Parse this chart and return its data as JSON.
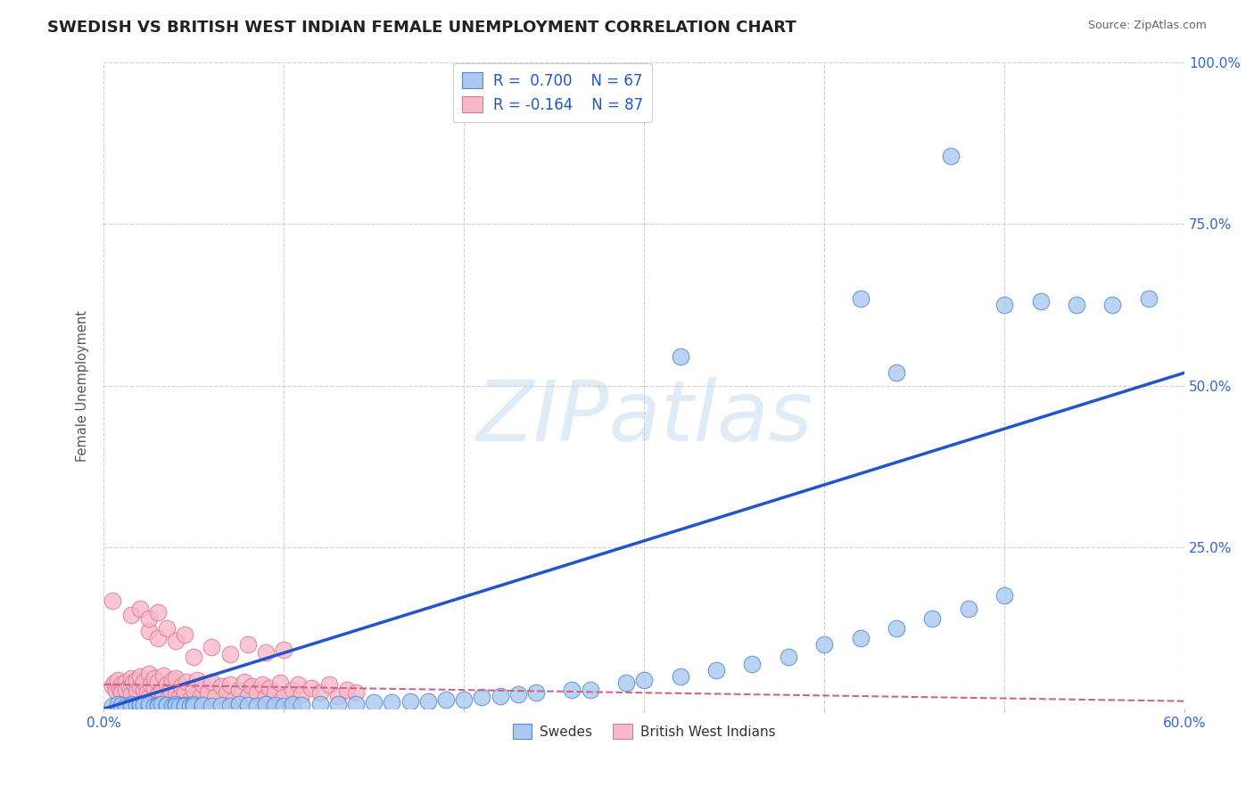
{
  "title": "SWEDISH VS BRITISH WEST INDIAN FEMALE UNEMPLOYMENT CORRELATION CHART",
  "source_text": "Source: ZipAtlas.com",
  "ylabel": "Female Unemployment",
  "xlim": [
    0.0,
    0.6
  ],
  "ylim": [
    0.0,
    1.0
  ],
  "background_color": "#ffffff",
  "grid_color": "#d0d0d0",
  "swedes_color": "#aac8f0",
  "swedes_edge_color": "#5588cc",
  "bwi_color": "#f8b8c8",
  "bwi_edge_color": "#dd7799",
  "trend_blue_color": "#2255cc",
  "trend_pink_color": "#cc6688",
  "tick_color": "#3366cc",
  "title_color": "#222222",
  "title_fontsize": 13,
  "axis_label_color": "#555555",
  "source_color": "#666666",
  "swedes_x": [
    0.005,
    0.008,
    0.01,
    0.012,
    0.015,
    0.015,
    0.018,
    0.02,
    0.02,
    0.022,
    0.025,
    0.025,
    0.028,
    0.03,
    0.03,
    0.032,
    0.035,
    0.035,
    0.038,
    0.04,
    0.04,
    0.042,
    0.045,
    0.045,
    0.048,
    0.05,
    0.05,
    0.055,
    0.055,
    0.06,
    0.065,
    0.07,
    0.075,
    0.08,
    0.085,
    0.09,
    0.095,
    0.1,
    0.105,
    0.11,
    0.12,
    0.13,
    0.14,
    0.15,
    0.16,
    0.17,
    0.18,
    0.19,
    0.2,
    0.21,
    0.22,
    0.23,
    0.24,
    0.26,
    0.27,
    0.29,
    0.3,
    0.32,
    0.34,
    0.36,
    0.38,
    0.4,
    0.42,
    0.44,
    0.46,
    0.48,
    0.5
  ],
  "swedes_y": [
    0.005,
    0.007,
    0.006,
    0.005,
    0.008,
    0.004,
    0.006,
    0.005,
    0.007,
    0.006,
    0.004,
    0.008,
    0.005,
    0.006,
    0.004,
    0.007,
    0.005,
    0.006,
    0.005,
    0.007,
    0.004,
    0.005,
    0.006,
    0.004,
    0.005,
    0.007,
    0.004,
    0.005,
    0.006,
    0.005,
    0.006,
    0.005,
    0.007,
    0.006,
    0.005,
    0.007,
    0.006,
    0.005,
    0.007,
    0.006,
    0.007,
    0.008,
    0.008,
    0.01,
    0.01,
    0.012,
    0.012,
    0.014,
    0.015,
    0.018,
    0.02,
    0.022,
    0.025,
    0.03,
    0.03,
    0.04,
    0.045,
    0.05,
    0.06,
    0.07,
    0.08,
    0.1,
    0.11,
    0.125,
    0.14,
    0.155,
    0.175
  ],
  "swedes_outliers_x": [
    0.32,
    0.42,
    0.5,
    0.52,
    0.44,
    0.47,
    0.54,
    0.56,
    0.58
  ],
  "swedes_outliers_y": [
    0.545,
    0.635,
    0.625,
    0.63,
    0.52,
    0.855,
    0.625,
    0.625,
    0.635
  ],
  "bwi_x": [
    0.005,
    0.006,
    0.007,
    0.008,
    0.009,
    0.01,
    0.01,
    0.012,
    0.012,
    0.014,
    0.015,
    0.015,
    0.016,
    0.018,
    0.018,
    0.02,
    0.02,
    0.022,
    0.022,
    0.024,
    0.025,
    0.025,
    0.026,
    0.028,
    0.028,
    0.03,
    0.03,
    0.032,
    0.033,
    0.035,
    0.035,
    0.037,
    0.038,
    0.04,
    0.04,
    0.042,
    0.043,
    0.045,
    0.046,
    0.048,
    0.05,
    0.052,
    0.054,
    0.055,
    0.058,
    0.06,
    0.062,
    0.065,
    0.068,
    0.07,
    0.072,
    0.075,
    0.078,
    0.08,
    0.082,
    0.085,
    0.088,
    0.09,
    0.092,
    0.095,
    0.098,
    0.1,
    0.105,
    0.108,
    0.11,
    0.115,
    0.12,
    0.125,
    0.13,
    0.135,
    0.14,
    0.05,
    0.06,
    0.07,
    0.08,
    0.09,
    0.1,
    0.025,
    0.03,
    0.035,
    0.04,
    0.045,
    0.015,
    0.02,
    0.025,
    0.03,
    0.005
  ],
  "bwi_y": [
    0.035,
    0.04,
    0.028,
    0.045,
    0.032,
    0.038,
    0.025,
    0.042,
    0.03,
    0.035,
    0.048,
    0.022,
    0.04,
    0.028,
    0.045,
    0.035,
    0.05,
    0.03,
    0.042,
    0.025,
    0.055,
    0.018,
    0.038,
    0.032,
    0.048,
    0.022,
    0.042,
    0.028,
    0.052,
    0.015,
    0.038,
    0.03,
    0.045,
    0.022,
    0.048,
    0.018,
    0.035,
    0.025,
    0.042,
    0.015,
    0.03,
    0.045,
    0.02,
    0.038,
    0.025,
    0.042,
    0.018,
    0.035,
    0.025,
    0.038,
    0.015,
    0.03,
    0.042,
    0.02,
    0.035,
    0.025,
    0.038,
    0.018,
    0.032,
    0.025,
    0.04,
    0.018,
    0.03,
    0.038,
    0.022,
    0.032,
    0.025,
    0.038,
    0.02,
    0.03,
    0.025,
    0.08,
    0.095,
    0.085,
    0.1,
    0.088,
    0.092,
    0.12,
    0.11,
    0.125,
    0.105,
    0.115,
    0.145,
    0.155,
    0.14,
    0.15,
    0.168
  ],
  "swedes_trend_x": [
    0.0,
    0.6
  ],
  "swedes_trend_y": [
    0.0,
    0.52
  ],
  "bwi_trend_x": [
    0.0,
    0.6
  ],
  "bwi_trend_y": [
    0.038,
    0.012
  ]
}
